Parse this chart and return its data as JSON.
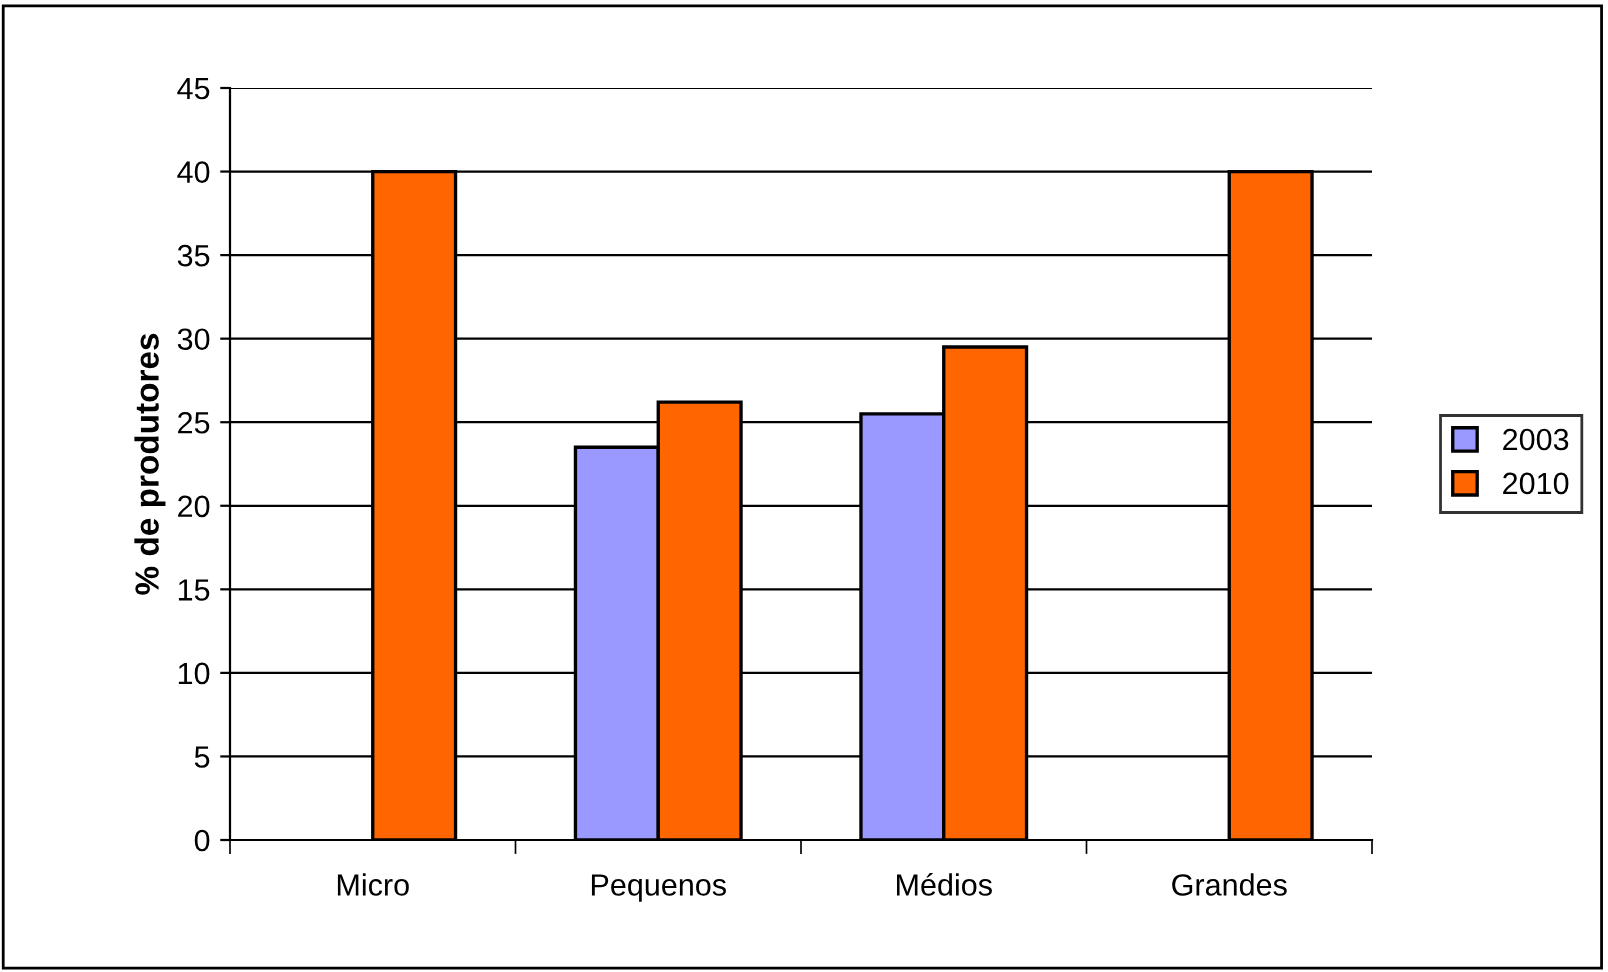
{
  "chart_data": {
    "type": "bar",
    "ylabel": "% de produtores",
    "categories": [
      "Micro",
      "Pequenos",
      "Médios",
      "Grandes"
    ],
    "series": [
      {
        "name": "2003",
        "color": "#9999ff",
        "values": [
          null,
          23.5,
          25.5,
          null
        ]
      },
      {
        "name": "2010",
        "color": "#ff6600",
        "values": [
          40,
          26.2,
          29.5,
          40
        ]
      }
    ],
    "ylim": [
      0,
      45
    ],
    "yticks": [
      0,
      5,
      10,
      15,
      20,
      25,
      30,
      35,
      40,
      45
    ],
    "grid": "y",
    "legend": "right"
  }
}
